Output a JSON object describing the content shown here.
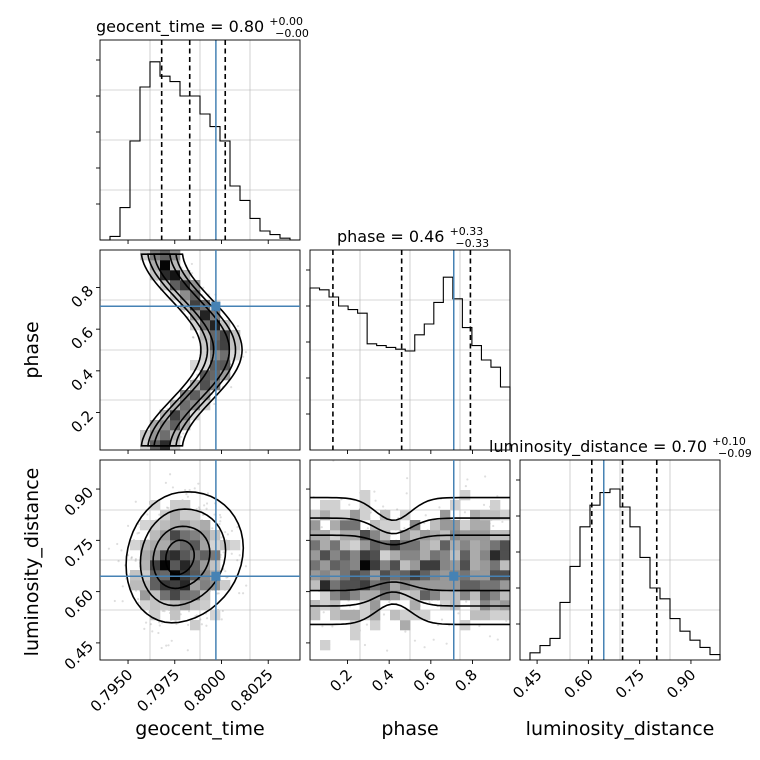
{
  "chart_data": {
    "type": "corner",
    "parameters": [
      "geocent_time",
      "phase",
      "luminosity_distance"
    ],
    "titles": {
      "geocent_time": {
        "name": "geocent_time",
        "median": "0.80",
        "plus": "+0.00",
        "minus": "−0.00"
      },
      "phase": {
        "name": "phase",
        "median": "0.46",
        "plus": "+0.33",
        "minus": "−0.33"
      },
      "luminosity_distance": {
        "name": "luminosity_distance",
        "median": "0.70",
        "plus": "+0.10",
        "minus": "−0.09"
      }
    },
    "axis_labels": {
      "x": [
        "geocent_time",
        "phase",
        "luminosity_distance"
      ],
      "y": [
        "phase",
        "luminosity_distance"
      ]
    },
    "ranges": {
      "geocent_time": [
        0.7935,
        0.8042
      ],
      "phase": [
        0.02,
        0.98
      ],
      "luminosity_distance": [
        0.4,
        0.985
      ]
    },
    "ticks": {
      "geocent_time": [
        "0.7950",
        "0.7975",
        "0.8000",
        "0.8025"
      ],
      "phase": [
        "0.2",
        "0.4",
        "0.6",
        "0.8"
      ],
      "luminosity_distance": [
        "0.45",
        "0.60",
        "0.75",
        "0.90"
      ]
    },
    "truths": {
      "geocent_time": 0.7997,
      "phase": 0.71,
      "luminosity_distance": 0.645
    },
    "quantiles": {
      "geocent_time": [
        0.7968,
        0.7983,
        0.8002
      ],
      "phase": [
        0.13,
        0.46,
        0.79
      ],
      "luminosity_distance": [
        0.61,
        0.7,
        0.8
      ]
    },
    "histograms": {
      "geocent_time": {
        "edges_start": 0.7935,
        "edges_end": 0.8042,
        "counts": [
          0,
          0.02,
          0.18,
          0.55,
          0.85,
          0.99,
          0.91,
          0.88,
          0.8,
          0.8,
          0.7,
          0.63,
          0.55,
          0.3,
          0.22,
          0.12,
          0.05,
          0.03,
          0.01,
          0
        ]
      },
      "phase": {
        "edges_start": 0.02,
        "edges_end": 0.98,
        "counts": [
          0.9,
          0.89,
          0.85,
          0.8,
          0.78,
          0.76,
          0.59,
          0.58,
          0.57,
          0.56,
          0.55,
          0.64,
          0.7,
          0.82,
          0.96,
          0.84,
          0.68,
          0.58,
          0.5,
          0.46,
          0.35
        ]
      },
      "luminosity_distance": {
        "edges_start": 0.4,
        "edges_end": 0.985,
        "counts": [
          0,
          0.04,
          0.08,
          0.12,
          0.32,
          0.52,
          0.74,
          0.86,
          0.93,
          0.95,
          0.85,
          0.74,
          0.57,
          0.4,
          0.34,
          0.23,
          0.16,
          0.11,
          0.07,
          0.03
        ]
      }
    },
    "joint_samples_seed": 7,
    "grid": true
  }
}
